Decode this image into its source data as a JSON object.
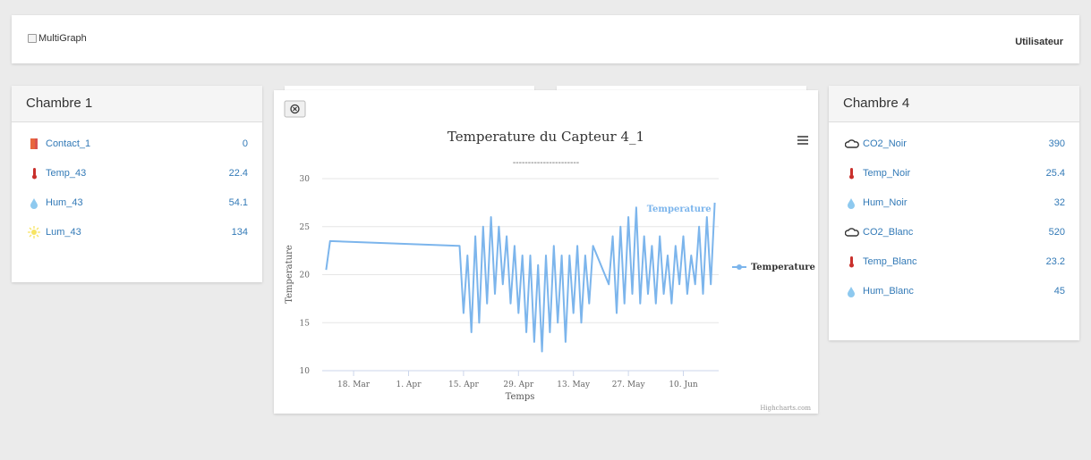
{
  "header": {
    "checkbox_label": "MultiGraph",
    "user": "Utilisateur"
  },
  "panels": [
    {
      "title": "Chambre 1",
      "rows": [
        {
          "name": "Contact_1",
          "value": 0
        },
        {
          "name": "Temp_43",
          "value": 22.4
        },
        {
          "name": "Hum_43",
          "value": 54.1
        },
        {
          "name": "Lum_43",
          "value": 134
        }
      ]
    },
    {
      "title": "Chambre 4",
      "rows": [
        {
          "name": "CO2_Noir",
          "value": 390
        },
        {
          "name": "Temp_Noir",
          "value": 25.4
        },
        {
          "name": "Hum_Noir",
          "value": 32
        },
        {
          "name": "CO2_Blanc",
          "value": 520
        },
        {
          "name": "Temp_Blanc",
          "value": 23.2
        },
        {
          "name": "Hum_Blanc",
          "value": 45
        }
      ]
    }
  ],
  "chart_data": {
    "type": "line",
    "title": "Temperature du Capteur 4_1",
    "subtitle": "----------------------",
    "y_label": "Temperature",
    "x_label": "Temps",
    "credits": "Highcharts.com",
    "x": [
      "03-11",
      "03-12",
      "04-14",
      "04-15",
      "04-16",
      "04-17",
      "04-18",
      "04-19",
      "04-20",
      "04-21",
      "04-22",
      "04-23",
      "04-24",
      "04-25",
      "04-26",
      "04-27",
      "04-28",
      "04-29",
      "04-30",
      "05-01",
      "05-02",
      "05-03",
      "05-04",
      "05-05",
      "05-06",
      "05-07",
      "05-08",
      "05-09",
      "05-10",
      "05-11",
      "05-12",
      "05-13",
      "05-14",
      "05-15",
      "05-16",
      "05-17",
      "05-18",
      "05-19",
      "05-22",
      "05-23",
      "05-24",
      "05-25",
      "05-26",
      "05-27",
      "05-28",
      "05-29",
      "05-30",
      "05-31",
      "06-01",
      "06-02",
      "06-03",
      "06-04",
      "06-05",
      "06-06",
      "06-07",
      "06-08",
      "06-09",
      "06-10",
      "06-11",
      "06-12",
      "06-13",
      "06-14",
      "06-15",
      "06-16",
      "06-17",
      "06-18"
    ],
    "series": [
      {
        "name": "Temperature",
        "color": "#7cb5ec",
        "values": [
          20.5,
          23.5,
          23,
          16,
          22,
          14,
          24,
          15,
          25,
          17,
          26,
          18,
          25,
          19,
          24,
          17,
          23,
          16,
          22,
          14,
          22,
          13,
          21,
          12,
          22,
          14,
          23,
          15,
          22,
          13,
          22,
          16,
          23,
          15,
          22,
          17,
          23,
          22,
          19,
          24,
          16,
          25,
          17,
          26,
          18,
          27,
          17,
          24,
          18,
          23,
          17,
          24,
          18,
          22,
          17,
          23,
          19,
          24,
          18,
          22,
          19,
          25,
          18,
          26,
          19,
          27.5
        ]
      }
    ],
    "xlim": [
      "03-10",
      "06-19"
    ],
    "xticks": [
      {
        "value": "03-18",
        "label": "18. Mar"
      },
      {
        "value": "04-01",
        "label": "1. Apr"
      },
      {
        "value": "04-15",
        "label": "15. Apr"
      },
      {
        "value": "04-29",
        "label": "29. Apr"
      },
      {
        "value": "05-13",
        "label": "13. May"
      },
      {
        "value": "05-27",
        "label": "27. May"
      },
      {
        "value": "06-10",
        "label": "10. Jun"
      }
    ],
    "ylim": [
      10,
      30
    ],
    "yticks": [
      10,
      15,
      20,
      25,
      30
    ],
    "grid": true,
    "legend": "right"
  }
}
